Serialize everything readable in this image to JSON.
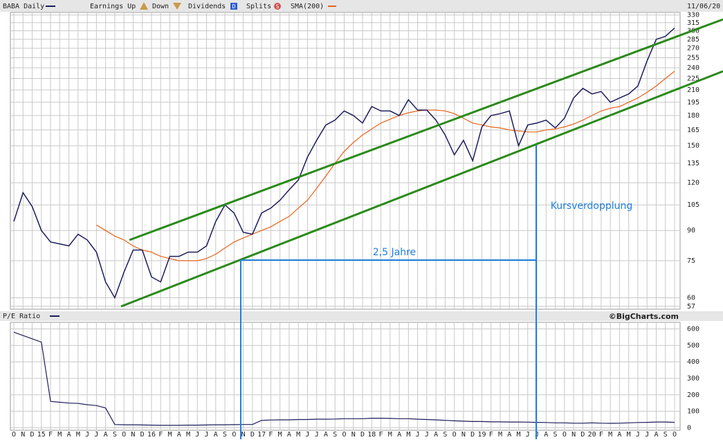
{
  "chart_data": {
    "type": "line",
    "title": "BABA Daily",
    "date": "11/06/20",
    "legend": {
      "earnings_up": "Earnings Up",
      "down": "Down",
      "dividends": "Dividends",
      "dividends_icon": "D",
      "splits": "Splits",
      "splits_icon": "S"
    },
    "credit": "©BigCharts.com",
    "categories": [
      "O",
      "N",
      "D",
      "15",
      "F",
      "M",
      "A",
      "M",
      "J",
      "J",
      "A",
      "S",
      "O",
      "N",
      "D",
      "16",
      "F",
      "M",
      "A",
      "M",
      "J",
      "J",
      "A",
      "S",
      "O",
      "N",
      "D",
      "17",
      "F",
      "M",
      "A",
      "M",
      "J",
      "J",
      "A",
      "S",
      "O",
      "N",
      "D",
      "18",
      "F",
      "M",
      "A",
      "M",
      "J",
      "J",
      "A",
      "S",
      "O",
      "N",
      "D",
      "19",
      "F",
      "M",
      "A",
      "M",
      "J",
      "J",
      "A",
      "S",
      "O",
      "N",
      "D",
      "20",
      "F",
      "M",
      "A",
      "M",
      "J",
      "J",
      "A",
      "S",
      "O"
    ],
    "series": [
      {
        "name": "BABA Daily",
        "color": "#1c1c5c",
        "values": [
          95,
          113,
          104,
          90,
          84,
          83,
          82,
          88,
          85,
          79,
          66,
          60,
          70,
          80,
          80,
          68,
          66,
          77,
          77,
          79,
          79,
          82,
          95,
          105,
          100,
          89,
          88,
          100,
          103,
          108,
          115,
          122,
          140,
          155,
          170,
          175,
          185,
          180,
          172,
          190,
          185,
          185,
          180,
          198,
          186,
          186,
          175,
          160,
          142,
          155,
          137,
          168,
          180,
          182,
          185,
          150,
          170,
          172,
          175,
          167,
          177,
          200,
          212,
          205,
          208,
          195,
          200,
          205,
          215,
          250,
          285,
          290,
          305
        ]
      },
      {
        "name": "SMA(200)",
        "color": "#e8621a",
        "values": [
          null,
          null,
          null,
          null,
          null,
          null,
          null,
          null,
          null,
          93,
          90,
          87,
          85,
          82,
          80,
          79,
          77,
          76,
          75,
          75,
          75,
          76,
          78,
          81,
          84,
          86,
          88,
          90,
          92,
          95,
          98,
          103,
          108,
          116,
          125,
          135,
          145,
          153,
          160,
          166,
          172,
          176,
          180,
          183,
          185,
          186,
          186,
          185,
          182,
          177,
          172,
          170,
          168,
          167,
          165,
          164,
          163,
          163,
          165,
          166,
          168,
          171,
          175,
          180,
          185,
          188,
          190,
          195,
          200,
          207,
          215,
          225,
          235
        ]
      }
    ],
    "ylim": [
      56,
      335
    ],
    "log_scale": true,
    "grid": true,
    "yticks": [
      57,
      60,
      75,
      90,
      105,
      120,
      135,
      150,
      165,
      180,
      195,
      210,
      225,
      240,
      255,
      270,
      285,
      300,
      315,
      330
    ],
    "annotations": [
      "2,5 Jahre",
      "Kursverdopplung"
    ],
    "pe_panel": {
      "title": "P/E Ratio",
      "color": "#1c1c5c",
      "values": [
        580,
        560,
        540,
        520,
        160,
        155,
        150,
        148,
        140,
        135,
        120,
        20,
        18,
        18,
        17,
        16,
        15,
        15,
        15,
        16,
        16,
        17,
        18,
        18,
        19,
        20,
        20,
        45,
        47,
        48,
        48,
        50,
        50,
        52,
        52,
        53,
        55,
        55,
        55,
        58,
        58,
        57,
        55,
        55,
        52,
        50,
        48,
        45,
        42,
        40,
        38,
        38,
        36,
        36,
        35,
        35,
        34,
        33,
        32,
        30,
        30,
        28,
        28,
        30,
        28,
        27,
        28,
        30,
        32,
        33,
        35,
        35,
        33
      ],
      "ylim": [
        -15,
        640
      ],
      "yticks": [
        0,
        100,
        200,
        300,
        400,
        500,
        600
      ]
    }
  }
}
